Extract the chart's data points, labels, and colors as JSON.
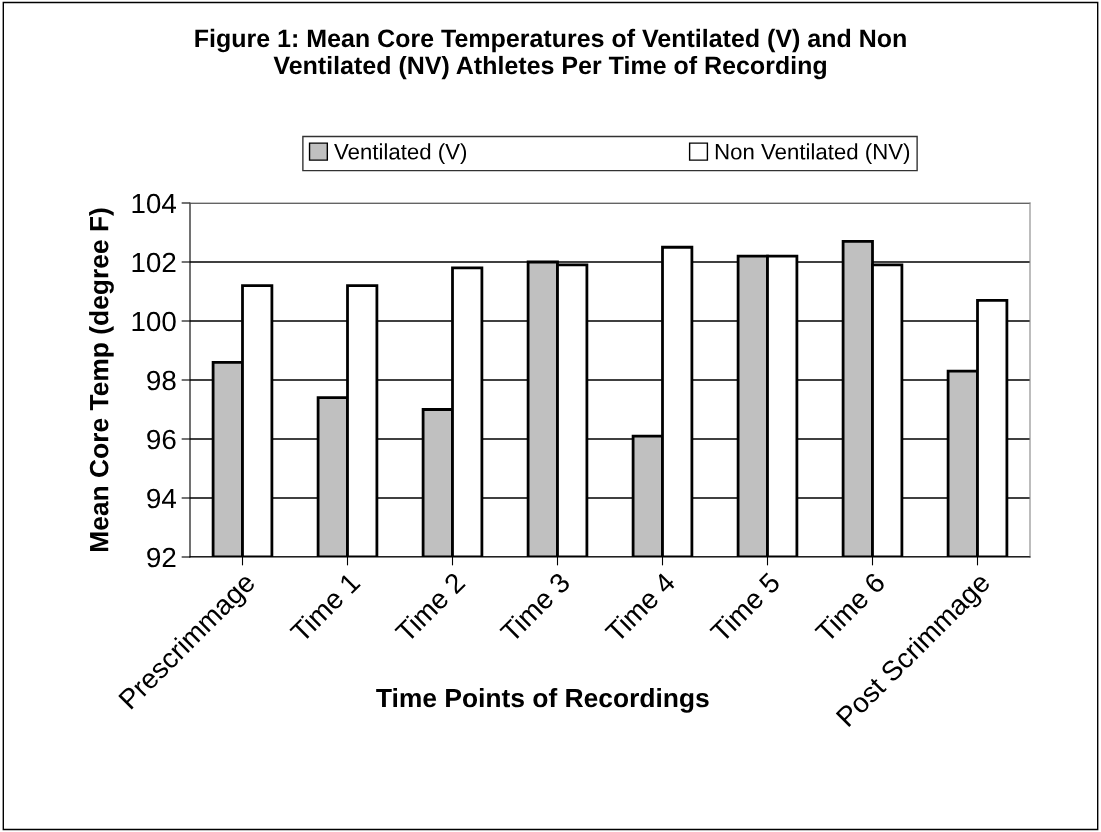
{
  "chart_data": {
    "type": "bar",
    "title": "Figure 1: Mean Core Temperatures of Ventilated (V) and Non\nVentilated (NV) Athletes Per Time of Recording",
    "xlabel": "Time Points of Recordings",
    "ylabel": "Mean Core Temp (degree F)",
    "categories": [
      "Prescrimmage",
      "Time 1",
      "Time 2",
      "Time 3",
      "Time 4",
      "Time 5",
      "Time 6",
      "Post Scrimmage"
    ],
    "series": [
      {
        "name": "Ventilated (V)",
        "color": "#c0c0c0",
        "values": [
          98.6,
          97.4,
          97.0,
          102.0,
          96.1,
          102.2,
          102.7,
          98.3
        ]
      },
      {
        "name": "Non Ventilated (NV)",
        "color": "#ffffff",
        "values": [
          101.2,
          101.2,
          101.8,
          101.9,
          102.5,
          102.2,
          101.9,
          100.7
        ]
      }
    ],
    "ylim": [
      92,
      104
    ],
    "yticks": [
      92,
      94,
      96,
      98,
      100,
      102,
      104
    ],
    "grid": "y",
    "legend": "top"
  }
}
